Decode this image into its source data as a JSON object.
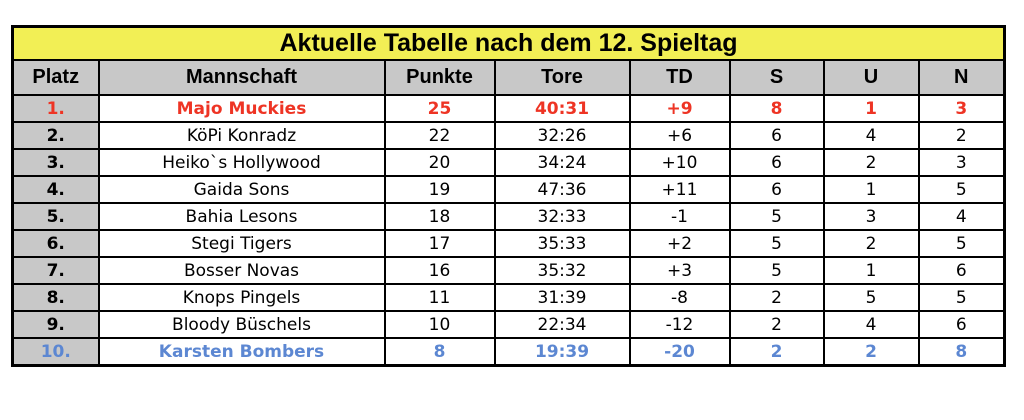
{
  "title": "Aktuelle Tabelle nach dem 12. Spieltag",
  "columns": [
    {
      "key": "platz",
      "label": "Platz"
    },
    {
      "key": "mannschaft",
      "label": "Mannschaft"
    },
    {
      "key": "punkte",
      "label": "Punkte"
    },
    {
      "key": "tore",
      "label": "Tore"
    },
    {
      "key": "td",
      "label": "TD"
    },
    {
      "key": "s",
      "label": "S"
    },
    {
      "key": "u",
      "label": "U"
    },
    {
      "key": "n",
      "label": "N"
    }
  ],
  "rows": [
    {
      "platz": "1.",
      "mannschaft": "Majo Muckies",
      "punkte": "25",
      "tore": "40:31",
      "td": "+9",
      "s": "8",
      "u": "1",
      "n": "3",
      "highlight": "red"
    },
    {
      "platz": "2.",
      "mannschaft": "KöPi Konradz",
      "punkte": "22",
      "tore": "32:26",
      "td": "+6",
      "s": "6",
      "u": "4",
      "n": "2",
      "highlight": null
    },
    {
      "platz": "3.",
      "mannschaft": "Heiko`s Hollywood",
      "punkte": "20",
      "tore": "34:24",
      "td": "+10",
      "s": "6",
      "u": "2",
      "n": "3",
      "highlight": null
    },
    {
      "platz": "4.",
      "mannschaft": "Gaida Sons",
      "punkte": "19",
      "tore": "47:36",
      "td": "+11",
      "s": "6",
      "u": "1",
      "n": "5",
      "highlight": null
    },
    {
      "platz": "5.",
      "mannschaft": "Bahia Lesons",
      "punkte": "18",
      "tore": "32:33",
      "td": "-1",
      "s": "5",
      "u": "3",
      "n": "4",
      "highlight": null
    },
    {
      "platz": "6.",
      "mannschaft": "Stegi Tigers",
      "punkte": "17",
      "tore": "35:33",
      "td": "+2",
      "s": "5",
      "u": "2",
      "n": "5",
      "highlight": null
    },
    {
      "platz": "7.",
      "mannschaft": "Bosser Novas",
      "punkte": "16",
      "tore": "35:32",
      "td": "+3",
      "s": "5",
      "u": "1",
      "n": "6",
      "highlight": null
    },
    {
      "platz": "8.",
      "mannschaft": "Knops Pingels",
      "punkte": "11",
      "tore": "31:39",
      "td": "-8",
      "s": "2",
      "u": "5",
      "n": "5",
      "highlight": null
    },
    {
      "platz": "9.",
      "mannschaft": "Bloody Büschels",
      "punkte": "10",
      "tore": "22:34",
      "td": "-12",
      "s": "2",
      "u": "4",
      "n": "6",
      "highlight": null
    },
    {
      "platz": "10.",
      "mannschaft": "Karsten Bombers",
      "punkte": "8",
      "tore": "19:39",
      "td": "-20",
      "s": "2",
      "u": "2",
      "n": "8",
      "highlight": "blue"
    }
  ],
  "colors": {
    "title_background": "#F2EF55",
    "header_background": "#C8C8C8",
    "rank_column_background": "#C8C8C8",
    "leader_row_text": "#EE3424",
    "last_place_row_text": "#5C87D2",
    "grid_border": "#000000",
    "body_background": "#FFFFFF"
  },
  "chart_data": {
    "type": "table",
    "title": "Aktuelle Tabelle nach dem 12. Spieltag",
    "columns": [
      "Platz",
      "Mannschaft",
      "Punkte",
      "Tore",
      "TD",
      "S",
      "U",
      "N"
    ],
    "rows": [
      [
        "1.",
        "Majo Muckies",
        25,
        "40:31",
        "+9",
        8,
        1,
        3
      ],
      [
        "2.",
        "KöPi Konradz",
        22,
        "32:26",
        "+6",
        6,
        4,
        2
      ],
      [
        "3.",
        "Heiko`s Hollywood",
        20,
        "34:24",
        "+10",
        6,
        2,
        3
      ],
      [
        "4.",
        "Gaida Sons",
        19,
        "47:36",
        "+11",
        6,
        1,
        5
      ],
      [
        "5.",
        "Bahia Lesons",
        18,
        "32:33",
        "-1",
        5,
        3,
        4
      ],
      [
        "6.",
        "Stegi Tigers",
        17,
        "35:33",
        "+2",
        5,
        2,
        5
      ],
      [
        "7.",
        "Bosser Novas",
        16,
        "35:32",
        "+3",
        5,
        1,
        6
      ],
      [
        "8.",
        "Knops Pingels",
        11,
        "31:39",
        "-8",
        2,
        5,
        5
      ],
      [
        "9.",
        "Bloody Büschels",
        10,
        "22:34",
        "-12",
        2,
        4,
        6
      ],
      [
        "10.",
        "Karsten Bombers",
        8,
        "19:39",
        "-20",
        2,
        2,
        8
      ]
    ],
    "highlighted_rows": {
      "1": "red",
      "10": "blue"
    },
    "legend_position": "none",
    "grid": true
  }
}
